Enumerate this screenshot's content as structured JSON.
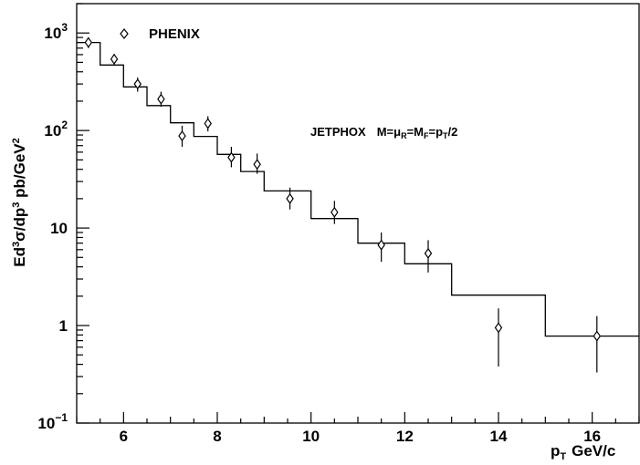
{
  "chart_data": {
    "type": "scatter",
    "xlabel": "p",
    "xlabel_sub": "T",
    "xlabel_units": "GeV/c",
    "ylabel": "Ed³σ/dp³ pb/GeV²",
    "xlim": [
      5,
      17
    ],
    "ylim": [
      0.1,
      2000
    ],
    "y_scale": "log",
    "x_ticks": [
      6,
      8,
      10,
      12,
      14,
      16
    ],
    "y_tick_labels": [
      {
        "value": 1000,
        "base": "10",
        "exp": "3"
      },
      {
        "value": 100,
        "base": "10",
        "exp": "2"
      },
      {
        "value": 10,
        "base": "10",
        "exp": ""
      },
      {
        "value": 1,
        "base": "1",
        "exp": ""
      },
      {
        "value": 0.1,
        "base": "10",
        "exp": "−1"
      }
    ],
    "grid": false,
    "legend_position": "top-left",
    "series": [
      {
        "name": "PHENIX",
        "kind": "points",
        "marker": "diamond",
        "points": [
          {
            "x": 5.25,
            "y": 800,
            "ylo": 700,
            "yhi": 900
          },
          {
            "x": 5.8,
            "y": 540,
            "ylo": 470,
            "yhi": 610
          },
          {
            "x": 6.3,
            "y": 300,
            "ylo": 250,
            "yhi": 350
          },
          {
            "x": 6.8,
            "y": 210,
            "ylo": 175,
            "yhi": 250
          },
          {
            "x": 7.25,
            "y": 88,
            "ylo": 68,
            "yhi": 112
          },
          {
            "x": 7.8,
            "y": 118,
            "ylo": 98,
            "yhi": 140
          },
          {
            "x": 8.3,
            "y": 53,
            "ylo": 42,
            "yhi": 68
          },
          {
            "x": 8.85,
            "y": 45,
            "ylo": 36,
            "yhi": 58
          },
          {
            "x": 9.55,
            "y": 20,
            "ylo": 15.5,
            "yhi": 26
          },
          {
            "x": 10.5,
            "y": 14.5,
            "ylo": 11,
            "yhi": 19
          },
          {
            "x": 11.5,
            "y": 6.7,
            "ylo": 4.5,
            "yhi": 9
          },
          {
            "x": 12.5,
            "y": 5.5,
            "ylo": 3.5,
            "yhi": 7.5
          },
          {
            "x": 14.0,
            "y": 0.95,
            "ylo": 0.38,
            "yhi": 1.5
          },
          {
            "x": 16.1,
            "y": 0.78,
            "ylo": 0.33,
            "yhi": 1.25
          }
        ]
      },
      {
        "name": "JETPHOX",
        "kind": "histogram",
        "bins": [
          {
            "x0": 5.0,
            "x1": 5.5,
            "y": 800
          },
          {
            "x0": 5.5,
            "x1": 6.0,
            "y": 470
          },
          {
            "x0": 6.0,
            "x1": 6.5,
            "y": 280
          },
          {
            "x0": 6.5,
            "x1": 7.0,
            "y": 180
          },
          {
            "x0": 7.0,
            "x1": 7.5,
            "y": 120
          },
          {
            "x0": 7.5,
            "x1": 8.0,
            "y": 87
          },
          {
            "x0": 8.0,
            "x1": 8.5,
            "y": 57
          },
          {
            "x0": 8.5,
            "x1": 9.0,
            "y": 38
          },
          {
            "x0": 9.0,
            "x1": 10.0,
            "y": 24
          },
          {
            "x0": 10.0,
            "x1": 11.0,
            "y": 12.5
          },
          {
            "x0": 11.0,
            "x1": 12.0,
            "y": 7.0
          },
          {
            "x0": 12.0,
            "x1": 13.0,
            "y": 4.3
          },
          {
            "x0": 13.0,
            "x1": 15.0,
            "y": 2.05
          },
          {
            "x0": 15.0,
            "x1": 17.0,
            "y": 0.78
          }
        ]
      }
    ],
    "legend": {
      "label": "PHENIX"
    },
    "annotation": "JETPHOX  M=μR=MF=pT/2"
  }
}
